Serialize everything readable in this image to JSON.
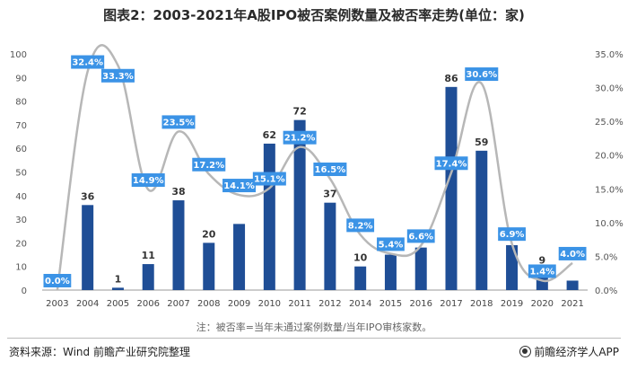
{
  "title": "图表2：2003-2021年A股IPO被否案例数量及被否率走势(单位：家)",
  "note": "注：被否率=当年未通过案例数量/当年IPO审核家数。",
  "source": "资料来源：Wind 前瞻产业研究院整理",
  "brand": "前瞻经济学人APP",
  "colors": {
    "bar": "#1f4e96",
    "line": "#b7b7b7",
    "label_bg": "#3b93e6"
  },
  "chart_data": {
    "type": "bar",
    "categories": [
      "2003",
      "2004",
      "2005",
      "2006",
      "2007",
      "2008",
      "2009",
      "2010",
      "2011",
      "2012",
      "2014",
      "2015",
      "2016",
      "2017",
      "2018",
      "2019",
      "2020",
      "2021"
    ],
    "series": [
      {
        "values": [
          0,
          36,
          1,
          11,
          38,
          20,
          28,
          62,
          72,
          37,
          10,
          15,
          18,
          86,
          59,
          19,
          9,
          4
        ]
      },
      {
        "values": [
          0.0,
          32.4,
          33.3,
          14.9,
          23.5,
          17.2,
          14.1,
          15.1,
          21.2,
          16.5,
          8.2,
          5.4,
          6.6,
          17.4,
          30.6,
          6.9,
          1.4,
          4.0
        ]
      }
    ],
    "bar_labels": [
      "0",
      "36",
      "1",
      "11",
      "38",
      "20",
      "",
      "62",
      "72",
      "37",
      "10",
      "15",
      "18",
      "86",
      "59",
      "19",
      "9",
      ""
    ],
    "rate_labels": [
      "0.0%",
      "32.4%",
      "33.3%",
      "14.9%",
      "23.5%",
      "17.2%",
      "14.1%",
      "15.1%",
      "21.2%",
      "16.5%",
      "8.2%",
      "5.4%",
      "6.6%",
      "17.4%",
      "30.6%",
      "6.9%",
      "1.4%",
      "4.0%"
    ],
    "ylim": [
      0,
      100
    ],
    "y2lim": [
      0,
      35
    ],
    "yticks": [
      "0",
      "10",
      "20",
      "30",
      "40",
      "50",
      "60",
      "70",
      "80",
      "90",
      "100"
    ],
    "y2ticks": [
      "0.0%",
      "5.0%",
      "10.0%",
      "15.0%",
      "20.0%",
      "25.0%",
      "30.0%",
      "35.0%"
    ]
  }
}
